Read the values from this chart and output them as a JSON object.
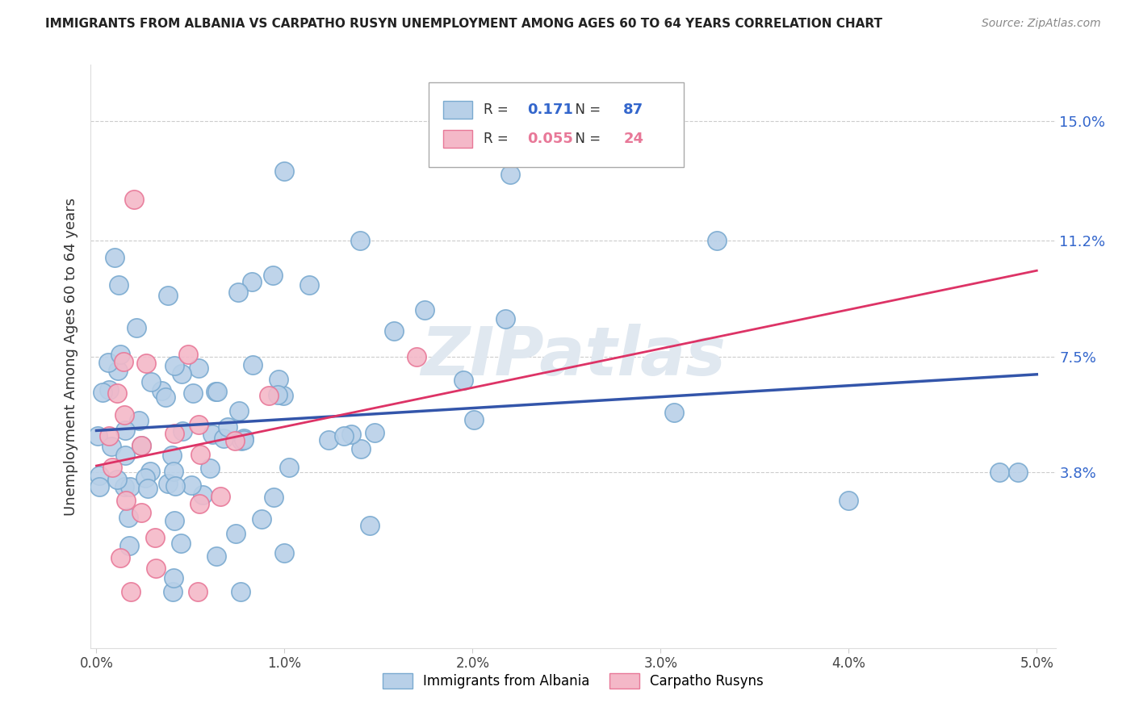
{
  "title": "IMMIGRANTS FROM ALBANIA VS CARPATHO RUSYN UNEMPLOYMENT AMONG AGES 60 TO 64 YEARS CORRELATION CHART",
  "source": "Source: ZipAtlas.com",
  "ylabel": "Unemployment Among Ages 60 to 64 years",
  "xlim": [
    -0.0003,
    0.051
  ],
  "ylim": [
    -0.018,
    0.168
  ],
  "xtick_vals": [
    0.0,
    0.01,
    0.02,
    0.03,
    0.04,
    0.05
  ],
  "xtick_labels": [
    "0.0%",
    "1.0%",
    "2.0%",
    "3.0%",
    "4.0%",
    "5.0%"
  ],
  "ytick_positions": [
    0.038,
    0.075,
    0.112,
    0.15
  ],
  "ytick_labels": [
    "3.8%",
    "7.5%",
    "11.2%",
    "15.0%"
  ],
  "legend_R1": "0.171",
  "legend_N1": "87",
  "legend_R2": "0.055",
  "legend_N2": "24",
  "series1_color": "#b8d0e8",
  "series1_edge": "#7aaad0",
  "series2_color": "#f4b8c8",
  "series2_edge": "#e87898",
  "trendline1_color": "#3355aa",
  "trendline2_color": "#dd3366",
  "grid_color": "#cccccc",
  "title_color": "#222222",
  "source_color": "#888888",
  "ylabel_color": "#333333",
  "ytick_color": "#3366cc",
  "xtick_color": "#444444",
  "watermark_color": "#e0e8f0",
  "legend_edge_color": "#aaaaaa",
  "n_albania": 87,
  "n_rusyn": 24,
  "seed": 12345
}
